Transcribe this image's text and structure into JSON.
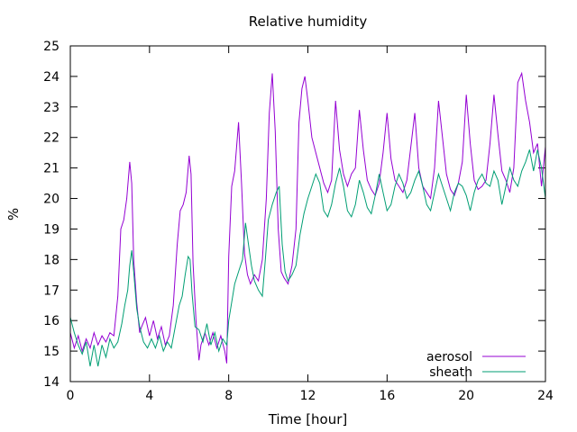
{
  "chart_data": {
    "type": "line",
    "title": "Relative humidity",
    "xlabel": "Time [hour]",
    "ylabel": "%",
    "xlim": [
      0,
      24
    ],
    "ylim": [
      14,
      25
    ],
    "xticks": [
      0,
      4,
      8,
      12,
      16,
      20,
      24
    ],
    "yticks": [
      14,
      15,
      16,
      17,
      18,
      19,
      20,
      21,
      22,
      23,
      24,
      25
    ],
    "grid": false,
    "legend_position": "bottom-right",
    "series": [
      {
        "name": "aerosol",
        "color": "#9400d3",
        "x": [
          0,
          0.2,
          0.4,
          0.6,
          0.8,
          1.0,
          1.2,
          1.4,
          1.6,
          1.8,
          2.0,
          2.2,
          2.4,
          2.55,
          2.7,
          2.85,
          3.0,
          3.1,
          3.2,
          3.35,
          3.5,
          3.6,
          3.8,
          4.0,
          4.2,
          4.4,
          4.6,
          4.8,
          5.0,
          5.2,
          5.4,
          5.55,
          5.7,
          5.85,
          6.0,
          6.1,
          6.2,
          6.35,
          6.5,
          6.6,
          6.8,
          7.0,
          7.2,
          7.4,
          7.6,
          7.8,
          7.9,
          8.0,
          8.15,
          8.3,
          8.5,
          8.65,
          8.8,
          8.95,
          9.1,
          9.3,
          9.5,
          9.7,
          9.9,
          10.05,
          10.2,
          10.35,
          10.5,
          10.65,
          10.8,
          11.0,
          11.2,
          11.4,
          11.55,
          11.7,
          11.85,
          12.0,
          12.2,
          12.4,
          12.6,
          12.8,
          13.0,
          13.2,
          13.4,
          13.6,
          13.8,
          14.0,
          14.2,
          14.4,
          14.6,
          14.8,
          15.0,
          15.2,
          15.4,
          15.6,
          15.8,
          16.0,
          16.2,
          16.4,
          16.6,
          16.8,
          17.0,
          17.2,
          17.4,
          17.6,
          17.8,
          18.0,
          18.2,
          18.4,
          18.6,
          18.8,
          19.0,
          19.2,
          19.4,
          19.6,
          19.8,
          20.0,
          20.2,
          20.4,
          20.6,
          20.8,
          21.0,
          21.2,
          21.4,
          21.6,
          21.8,
          22.0,
          22.2,
          22.4,
          22.6,
          22.8,
          23.0,
          23.2,
          23.4,
          23.6,
          23.8,
          24.0
        ],
        "y": [
          15.6,
          15.1,
          15.5,
          15.0,
          15.4,
          15.1,
          15.6,
          15.2,
          15.5,
          15.3,
          15.6,
          15.5,
          16.8,
          19.0,
          19.3,
          20.0,
          21.2,
          20.5,
          18.0,
          16.6,
          15.6,
          15.8,
          16.1,
          15.5,
          16.0,
          15.4,
          15.8,
          15.2,
          15.5,
          16.5,
          18.5,
          19.6,
          19.8,
          20.2,
          21.4,
          20.8,
          17.9,
          16.0,
          14.7,
          15.2,
          15.6,
          15.2,
          15.6,
          15.1,
          15.5,
          15.0,
          14.6,
          18.1,
          20.4,
          20.9,
          22.5,
          20.5,
          18.2,
          17.5,
          17.2,
          17.5,
          17.3,
          18.0,
          20.0,
          22.8,
          24.1,
          22.2,
          19.0,
          17.6,
          17.4,
          17.2,
          17.8,
          19.0,
          22.5,
          23.6,
          24.0,
          23.2,
          22.0,
          21.5,
          21.0,
          20.5,
          20.2,
          20.6,
          23.2,
          21.6,
          20.8,
          20.4,
          20.8,
          21.0,
          22.9,
          21.6,
          20.6,
          20.3,
          20.1,
          20.5,
          21.5,
          22.8,
          21.3,
          20.6,
          20.4,
          20.2,
          20.6,
          21.7,
          22.8,
          21.0,
          20.4,
          20.2,
          20.0,
          21.0,
          23.2,
          22.0,
          20.8,
          20.3,
          20.1,
          20.5,
          21.2,
          23.4,
          21.8,
          20.6,
          20.3,
          20.4,
          20.6,
          21.8,
          23.4,
          22.1,
          20.9,
          20.6,
          20.2,
          21.0,
          23.8,
          24.1,
          23.2,
          22.5,
          21.5,
          21.8,
          20.4,
          21.7
        ]
      },
      {
        "name": "sheath",
        "color": "#009e73",
        "x": [
          0,
          0.2,
          0.4,
          0.6,
          0.8,
          1.0,
          1.2,
          1.4,
          1.6,
          1.8,
          2.0,
          2.2,
          2.4,
          2.6,
          2.75,
          2.9,
          3.0,
          3.1,
          3.2,
          3.35,
          3.5,
          3.7,
          3.9,
          4.1,
          4.3,
          4.5,
          4.7,
          4.9,
          5.1,
          5.3,
          5.5,
          5.65,
          5.8,
          5.95,
          6.05,
          6.15,
          6.3,
          6.5,
          6.7,
          6.9,
          7.1,
          7.3,
          7.5,
          7.7,
          7.9,
          8.0,
          8.15,
          8.3,
          8.5,
          8.7,
          8.85,
          9.0,
          9.15,
          9.3,
          9.5,
          9.7,
          9.85,
          10.0,
          10.2,
          10.4,
          10.55,
          10.7,
          10.85,
          11.0,
          11.2,
          11.4,
          11.6,
          11.8,
          12.0,
          12.2,
          12.4,
          12.6,
          12.8,
          13.0,
          13.2,
          13.4,
          13.6,
          13.8,
          14.0,
          14.2,
          14.4,
          14.6,
          14.8,
          15.0,
          15.2,
          15.4,
          15.6,
          15.8,
          16.0,
          16.2,
          16.4,
          16.6,
          16.8,
          17.0,
          17.2,
          17.4,
          17.6,
          17.8,
          18.0,
          18.2,
          18.4,
          18.6,
          18.8,
          19.0,
          19.2,
          19.4,
          19.6,
          19.8,
          20.0,
          20.2,
          20.4,
          20.6,
          20.8,
          21.0,
          21.2,
          21.4,
          21.6,
          21.8,
          22.0,
          22.2,
          22.4,
          22.6,
          22.8,
          23.0,
          23.2,
          23.4,
          23.6,
          23.8,
          24.0
        ],
        "y": [
          16.1,
          15.6,
          15.2,
          14.9,
          15.3,
          14.5,
          15.2,
          14.5,
          15.2,
          14.8,
          15.4,
          15.1,
          15.3,
          15.9,
          16.5,
          17.0,
          17.8,
          18.3,
          17.6,
          16.4,
          15.8,
          15.3,
          15.1,
          15.4,
          15.1,
          15.5,
          15.0,
          15.3,
          15.1,
          15.8,
          16.5,
          16.8,
          17.5,
          18.1,
          18.0,
          16.9,
          15.8,
          15.7,
          15.3,
          15.9,
          15.2,
          15.6,
          15.0,
          15.4,
          15.2,
          16.0,
          16.6,
          17.2,
          17.6,
          18.0,
          19.2,
          18.5,
          17.8,
          17.3,
          17.0,
          16.8,
          18.0,
          19.3,
          19.8,
          20.2,
          20.4,
          18.5,
          17.6,
          17.3,
          17.5,
          17.8,
          18.8,
          19.5,
          20.0,
          20.4,
          20.8,
          20.5,
          19.6,
          19.4,
          19.8,
          20.5,
          21.0,
          20.4,
          19.6,
          19.4,
          19.8,
          20.6,
          20.2,
          19.7,
          19.5,
          20.1,
          20.8,
          20.2,
          19.6,
          19.8,
          20.4,
          20.8,
          20.5,
          20.0,
          20.2,
          20.6,
          20.9,
          20.4,
          19.8,
          19.6,
          20.2,
          20.8,
          20.4,
          20.0,
          19.6,
          20.2,
          20.5,
          20.4,
          20.1,
          19.6,
          20.2,
          20.6,
          20.8,
          20.5,
          20.4,
          20.9,
          20.6,
          19.8,
          20.4,
          21.0,
          20.6,
          20.4,
          20.9,
          21.2,
          21.6,
          20.9,
          21.6,
          21.0,
          20.0
        ]
      }
    ]
  }
}
